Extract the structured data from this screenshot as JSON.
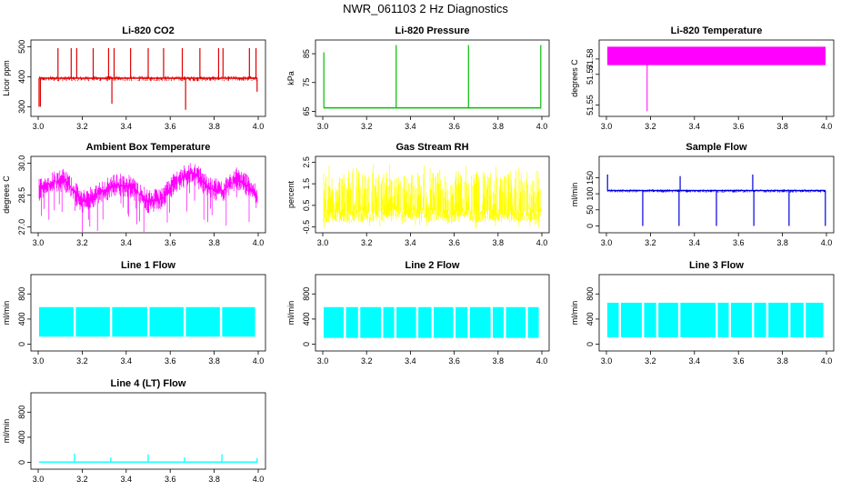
{
  "title": "NWR_061103  2 Hz Diagnostics",
  "colors": {
    "red": "#e00000",
    "green": "#00c000",
    "magenta": "#ff00ff",
    "yellow": "#ffff00",
    "blue": "#0000e0",
    "cyan": "#00ffff"
  },
  "chart_data": [
    {
      "type": "line",
      "title": "Li-820 CO2",
      "ylabel": "Licor ppm",
      "xlabel": "",
      "xlim": [
        3.0,
        4.0
      ],
      "ylim": [
        280,
        510
      ],
      "xticks": [
        "3.0",
        "3.2",
        "3.4",
        "3.6",
        "3.8",
        "4.0"
      ],
      "yticks": [
        "300",
        "400",
        "500"
      ],
      "color": "red",
      "style": "band",
      "baseline": 395,
      "band": {
        "low": 385,
        "high": 402
      },
      "spikes": [
        {
          "x": 3.004,
          "y": 300
        },
        {
          "x": 3.01,
          "y": 300
        },
        {
          "x": 3.09,
          "y": 495
        },
        {
          "x": 3.15,
          "y": 495
        },
        {
          "x": 3.175,
          "y": 495
        },
        {
          "x": 3.25,
          "y": 495
        },
        {
          "x": 3.32,
          "y": 495
        },
        {
          "x": 3.335,
          "y": 310
        },
        {
          "x": 3.345,
          "y": 495
        },
        {
          "x": 3.42,
          "y": 495
        },
        {
          "x": 3.5,
          "y": 495
        },
        {
          "x": 3.57,
          "y": 495
        },
        {
          "x": 3.655,
          "y": 495
        },
        {
          "x": 3.67,
          "y": 290
        },
        {
          "x": 3.735,
          "y": 495
        },
        {
          "x": 3.82,
          "y": 495
        },
        {
          "x": 3.84,
          "y": 495
        },
        {
          "x": 3.96,
          "y": 495
        },
        {
          "x": 3.99,
          "y": 495
        },
        {
          "x": 3.995,
          "y": 350
        }
      ]
    },
    {
      "type": "line",
      "title": "Li-820 Pressure",
      "ylabel": "kPa",
      "xlabel": "",
      "xlim": [
        3.0,
        4.0
      ],
      "ylim": [
        64.5,
        88.5
      ],
      "xticks": [
        "3.0",
        "3.2",
        "3.4",
        "3.6",
        "3.8",
        "4.0"
      ],
      "yticks": [
        "65",
        "75",
        "85"
      ],
      "color": "green",
      "style": "line",
      "baseline": 66.2,
      "band": {
        "low": 65.9,
        "high": 66.4
      },
      "spikes": [
        {
          "x": 3.005,
          "y": 85.5
        },
        {
          "x": 3.335,
          "y": 88
        },
        {
          "x": 3.665,
          "y": 88
        },
        {
          "x": 3.995,
          "y": 88
        }
      ]
    },
    {
      "type": "area",
      "title": "Li-820 Temperature",
      "ylabel": "degrees C",
      "xlabel": "",
      "xlim": [
        3.0,
        4.0
      ],
      "ylim": [
        51.545,
        51.59
      ],
      "xticks": [
        "3.0",
        "3.2",
        "3.4",
        "3.6",
        "3.8",
        "4.0"
      ],
      "yticks": [
        "51.55",
        "51.57",
        "51.58"
      ],
      "color": "magenta",
      "style": "solid",
      "band": {
        "low": 51.576,
        "high": 51.588
      },
      "spikes": [
        {
          "x": 3.185,
          "y": 51.546
        }
      ]
    },
    {
      "type": "line",
      "title": "Ambient Box Temperature",
      "ylabel": "degrees C",
      "xlabel": "",
      "xlim": [
        3.0,
        4.0
      ],
      "ylim": [
        26.9,
        30.15
      ],
      "xticks": [
        "3.0",
        "3.2",
        "3.4",
        "3.6",
        "3.8",
        "4.0"
      ],
      "yticks": [
        "27.0",
        "28.5",
        "30.0"
      ],
      "color": "magenta",
      "style": "wavy",
      "wave_points": [
        {
          "x": 3.0,
          "y": 28.7
        },
        {
          "x": 3.06,
          "y": 29.1
        },
        {
          "x": 3.12,
          "y": 29.2
        },
        {
          "x": 3.2,
          "y": 28.2
        },
        {
          "x": 3.28,
          "y": 28.6
        },
        {
          "x": 3.36,
          "y": 29.0
        },
        {
          "x": 3.42,
          "y": 28.9
        },
        {
          "x": 3.5,
          "y": 28.2
        },
        {
          "x": 3.56,
          "y": 28.3
        },
        {
          "x": 3.62,
          "y": 29.1
        },
        {
          "x": 3.7,
          "y": 29.6
        },
        {
          "x": 3.78,
          "y": 28.8
        },
        {
          "x": 3.84,
          "y": 28.7
        },
        {
          "x": 3.9,
          "y": 29.3
        },
        {
          "x": 3.96,
          "y": 28.9
        },
        {
          "x": 4.0,
          "y": 28.3
        }
      ],
      "noise": 0.55
    },
    {
      "type": "area",
      "title": "Gas Stream RH",
      "ylabel": "percent",
      "xlabel": "",
      "xlim": [
        3.0,
        4.0
      ],
      "ylim": [
        -0.6,
        2.6
      ],
      "xticks": [
        "3.0",
        "3.2",
        "3.4",
        "3.6",
        "3.8",
        "4.0"
      ],
      "yticks": [
        "-0.5",
        "0.5",
        "1.5",
        "2.5"
      ],
      "color": "yellow",
      "style": "noise",
      "band": {
        "low": -0.3,
        "high": 2.1
      }
    },
    {
      "type": "line",
      "title": "Sample Flow",
      "ylabel": "ml/min",
      "xlabel": "",
      "xlim": [
        3.0,
        4.0
      ],
      "ylim": [
        -10,
        205
      ],
      "xticks": [
        "3.0",
        "3.2",
        "3.4",
        "3.6",
        "3.8",
        "4.0"
      ],
      "yticks": [
        "0",
        "50",
        "100",
        "150"
      ],
      "color": "blue",
      "style": "band",
      "baseline": 110,
      "band": {
        "low": 104,
        "high": 114
      },
      "spikes": [
        {
          "x": 3.005,
          "y": 160
        },
        {
          "x": 3.165,
          "y": 0
        },
        {
          "x": 3.33,
          "y": 0
        },
        {
          "x": 3.335,
          "y": 155
        },
        {
          "x": 3.5,
          "y": 0
        },
        {
          "x": 3.665,
          "y": 160
        },
        {
          "x": 3.67,
          "y": 0
        },
        {
          "x": 3.83,
          "y": 0
        },
        {
          "x": 3.995,
          "y": 0
        }
      ]
    },
    {
      "type": "area",
      "title": "Line 1 Flow",
      "ylabel": "ml/min",
      "xlabel": "",
      "xlim": [
        3.0,
        4.0
      ],
      "ylim": [
        -50,
        1050
      ],
      "xticks": [
        "3.0",
        "3.2",
        "3.4",
        "3.6",
        "3.8",
        "4.0"
      ],
      "yticks": [
        "0",
        "400",
        "800"
      ],
      "color": "cyan",
      "style": "blocks",
      "band": {
        "low": 120,
        "high": 590
      },
      "gaps": [
        3.165,
        3.33,
        3.5,
        3.665,
        3.83
      ],
      "end": 3.99
    },
    {
      "type": "area",
      "title": "Line 2 Flow",
      "ylabel": "ml/min",
      "xlabel": "",
      "xlim": [
        3.0,
        4.0
      ],
      "ylim": [
        -50,
        1050
      ],
      "xticks": [
        "3.0",
        "3.2",
        "3.4",
        "3.6",
        "3.8",
        "4.0"
      ],
      "yticks": [
        "0",
        "400",
        "800"
      ],
      "color": "cyan",
      "style": "blocks",
      "band": {
        "low": 100,
        "high": 590
      },
      "gaps": [
        3.1,
        3.165,
        3.27,
        3.33,
        3.43,
        3.5,
        3.6,
        3.665,
        3.77,
        3.83,
        3.93
      ],
      "end": 3.99
    },
    {
      "type": "area",
      "title": "Line 3 Flow",
      "ylabel": "ml/min",
      "xlabel": "",
      "xlim": [
        3.0,
        4.0
      ],
      "ylim": [
        -50,
        1050
      ],
      "xticks": [
        "3.0",
        "3.2",
        "3.4",
        "3.6",
        "3.8",
        "4.0"
      ],
      "yticks": [
        "0",
        "400",
        "800"
      ],
      "color": "cyan",
      "style": "blocks",
      "band": {
        "low": 110,
        "high": 660
      },
      "gaps": [
        3.06,
        3.165,
        3.23,
        3.33,
        3.5,
        3.56,
        3.665,
        3.73,
        3.83,
        3.9
      ],
      "end": 3.99
    },
    {
      "type": "line",
      "title": "Line 4 (LT) Flow",
      "ylabel": "ml/min",
      "xlabel": "",
      "xlim": [
        3.0,
        4.0
      ],
      "ylim": [
        -50,
        1050
      ],
      "xticks": [
        "3.0",
        "3.2",
        "3.4",
        "3.6",
        "3.8",
        "4.0"
      ],
      "yticks": [
        "0",
        "400",
        "800"
      ],
      "color": "cyan",
      "style": "line",
      "baseline": 5,
      "band": {
        "low": 0,
        "high": 10
      },
      "spikes": [
        {
          "x": 3.165,
          "y": 140
        },
        {
          "x": 3.33,
          "y": 80
        },
        {
          "x": 3.5,
          "y": 130
        },
        {
          "x": 3.665,
          "y": 80
        },
        {
          "x": 3.835,
          "y": 130
        },
        {
          "x": 3.995,
          "y": 70
        }
      ]
    }
  ]
}
